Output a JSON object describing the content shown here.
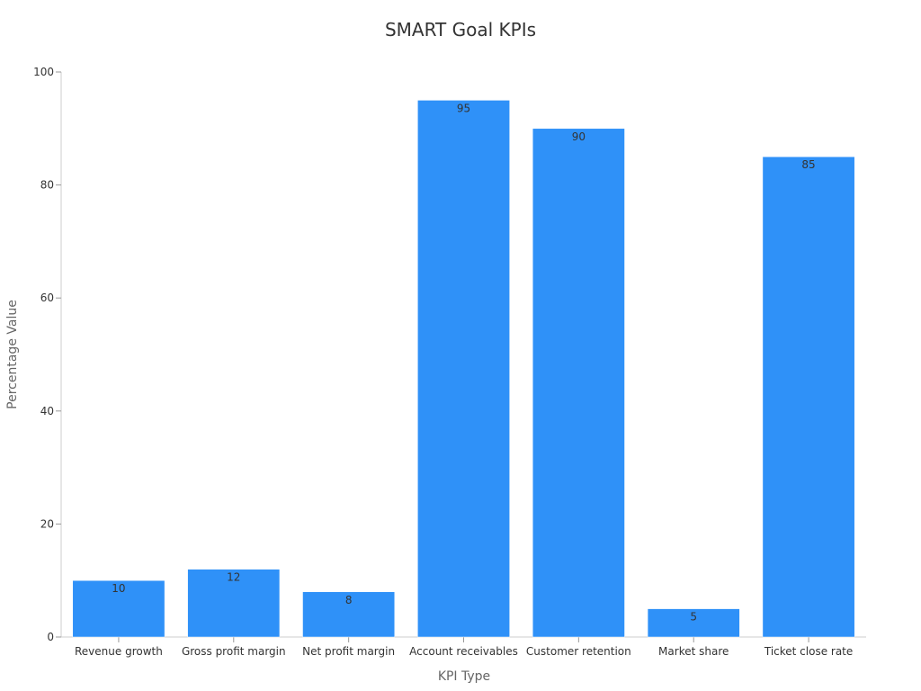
{
  "chart_data": {
    "type": "bar",
    "title": "SMART Goal KPIs",
    "xlabel": "KPI Type",
    "ylabel": "Percentage Value",
    "categories": [
      "Revenue growth",
      "Gross profit margin",
      "Net profit margin",
      "Account receivables",
      "Customer retention",
      "Market share",
      "Ticket close rate"
    ],
    "values": [
      10,
      12,
      8,
      95,
      90,
      5,
      85
    ],
    "ylim": [
      0,
      100
    ],
    "yticks": [
      0,
      20,
      40,
      60,
      80,
      100
    ],
    "grid": false,
    "legend": "none",
    "bar_color": "#2f91f8",
    "axis_color": "#cccccc"
  }
}
